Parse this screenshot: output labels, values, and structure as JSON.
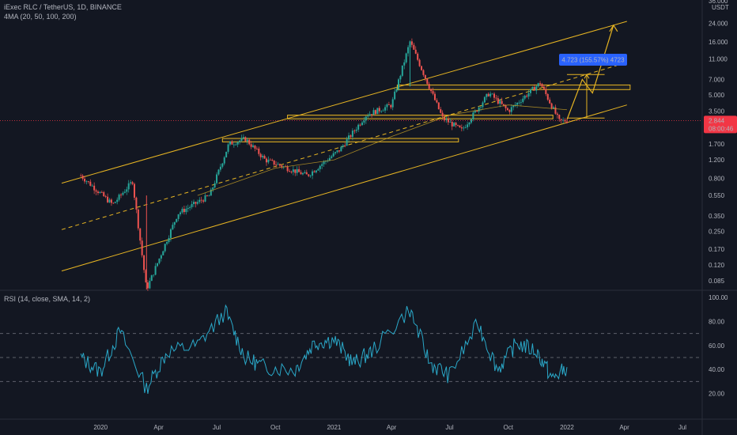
{
  "header": {
    "symbol_line": "iExec RLC / TetherUS, 1D, BINANCE",
    "ma_line": "4MA (20, 50, 100, 200)",
    "rsi_line": "RSI (14, close, SMA, 14, 2)"
  },
  "price_axis": {
    "currency": "USDT",
    "top_cut_label": "36.000",
    "ticks": [
      "24.000",
      "16.000",
      "11.000",
      "7.000",
      "5.000",
      "3.500",
      "2.500",
      "1.700",
      "1.200",
      "0.800",
      "0.550",
      "0.350",
      "0.250",
      "0.170",
      "0.120",
      "0.085"
    ],
    "current_price": "2.844",
    "countdown": "08:00:46"
  },
  "rsi_axis": {
    "ticks": [
      "100.00",
      "80.00",
      "60.00",
      "40.00",
      "20.00"
    ]
  },
  "time_axis": {
    "labels": [
      "2020",
      "Apr",
      "Jul",
      "Oct",
      "2021",
      "Apr",
      "Jul",
      "Oct",
      "2022",
      "Apr",
      "Jul"
    ]
  },
  "annotation": {
    "measure_label": "4.723 (155.57%) 4723"
  },
  "colors": {
    "background": "#131722",
    "up": "#26a69a",
    "down": "#ef5350",
    "drawing": "#e6b422",
    "rsi_line": "#2aa8c8",
    "label_blue": "#2962ff",
    "price_tag": "#f23645"
  },
  "chart_data": [
    {
      "type": "candlestick",
      "title": "iExec RLC / TetherUS, 1D, BINANCE",
      "scale": "log",
      "x_range": [
        "2019-11",
        "2022-08"
      ],
      "ylim": [
        0.07,
        36
      ],
      "key_points": [
        {
          "date": "2019-12-01",
          "price": 0.85
        },
        {
          "date": "2020-01-20",
          "price": 0.45
        },
        {
          "date": "2020-02-20",
          "price": 0.75
        },
        {
          "date": "2020-03-13",
          "price": 0.07
        },
        {
          "date": "2020-05-01",
          "price": 0.37
        },
        {
          "date": "2020-06-20",
          "price": 0.55
        },
        {
          "date": "2020-07-20",
          "price": 1.7
        },
        {
          "date": "2020-08-15",
          "price": 1.9
        },
        {
          "date": "2020-09-15",
          "price": 1.2
        },
        {
          "date": "2020-11-20",
          "price": 0.85
        },
        {
          "date": "2021-01-10",
          "price": 1.5
        },
        {
          "date": "2021-02-20",
          "price": 3.2
        },
        {
          "date": "2021-04-01",
          "price": 4.0
        },
        {
          "date": "2021-04-30",
          "price": 16.0
        },
        {
          "date": "2021-06-20",
          "price": 3.0
        },
        {
          "date": "2021-07-20",
          "price": 2.3
        },
        {
          "date": "2021-09-01",
          "price": 5.2
        },
        {
          "date": "2021-10-01",
          "price": 3.5
        },
        {
          "date": "2021-11-20",
          "price": 6.5
        },
        {
          "date": "2021-12-20",
          "price": 2.8
        },
        {
          "date": "2022-01-01",
          "price": 2.844
        }
      ],
      "moving_average": [
        {
          "date": "2020-06-01",
          "price": 0.55
        },
        {
          "date": "2020-10-01",
          "price": 1.0
        },
        {
          "date": "2021-01-01",
          "price": 1.2
        },
        {
          "date": "2021-04-01",
          "price": 2.0
        },
        {
          "date": "2021-07-01",
          "price": 3.2
        },
        {
          "date": "2021-10-01",
          "price": 4.0
        },
        {
          "date": "2022-01-01",
          "price": 3.6
        }
      ]
    },
    {
      "type": "line",
      "title": "RSI (14, close, SMA, 14, 2)",
      "ylim": [
        0,
        100
      ],
      "bands": [
        70,
        50,
        30
      ],
      "x": [
        "2019-12-01",
        "2020-01-01",
        "2020-02-01",
        "2020-03-13",
        "2020-04-15",
        "2020-06-01",
        "2020-07-15",
        "2020-08-15",
        "2020-09-15",
        "2020-11-01",
        "2020-12-01",
        "2021-01-01",
        "2021-02-01",
        "2021-03-01",
        "2021-04-30",
        "2021-06-01",
        "2021-07-01",
        "2021-08-15",
        "2021-09-15",
        "2021-10-15",
        "2021-11-15",
        "2021-12-10",
        "2022-01-01"
      ],
      "values": [
        50,
        38,
        72,
        24,
        55,
        60,
        88,
        50,
        42,
        40,
        62,
        65,
        45,
        55,
        90,
        45,
        35,
        78,
        40,
        62,
        55,
        32,
        42
      ]
    }
  ]
}
